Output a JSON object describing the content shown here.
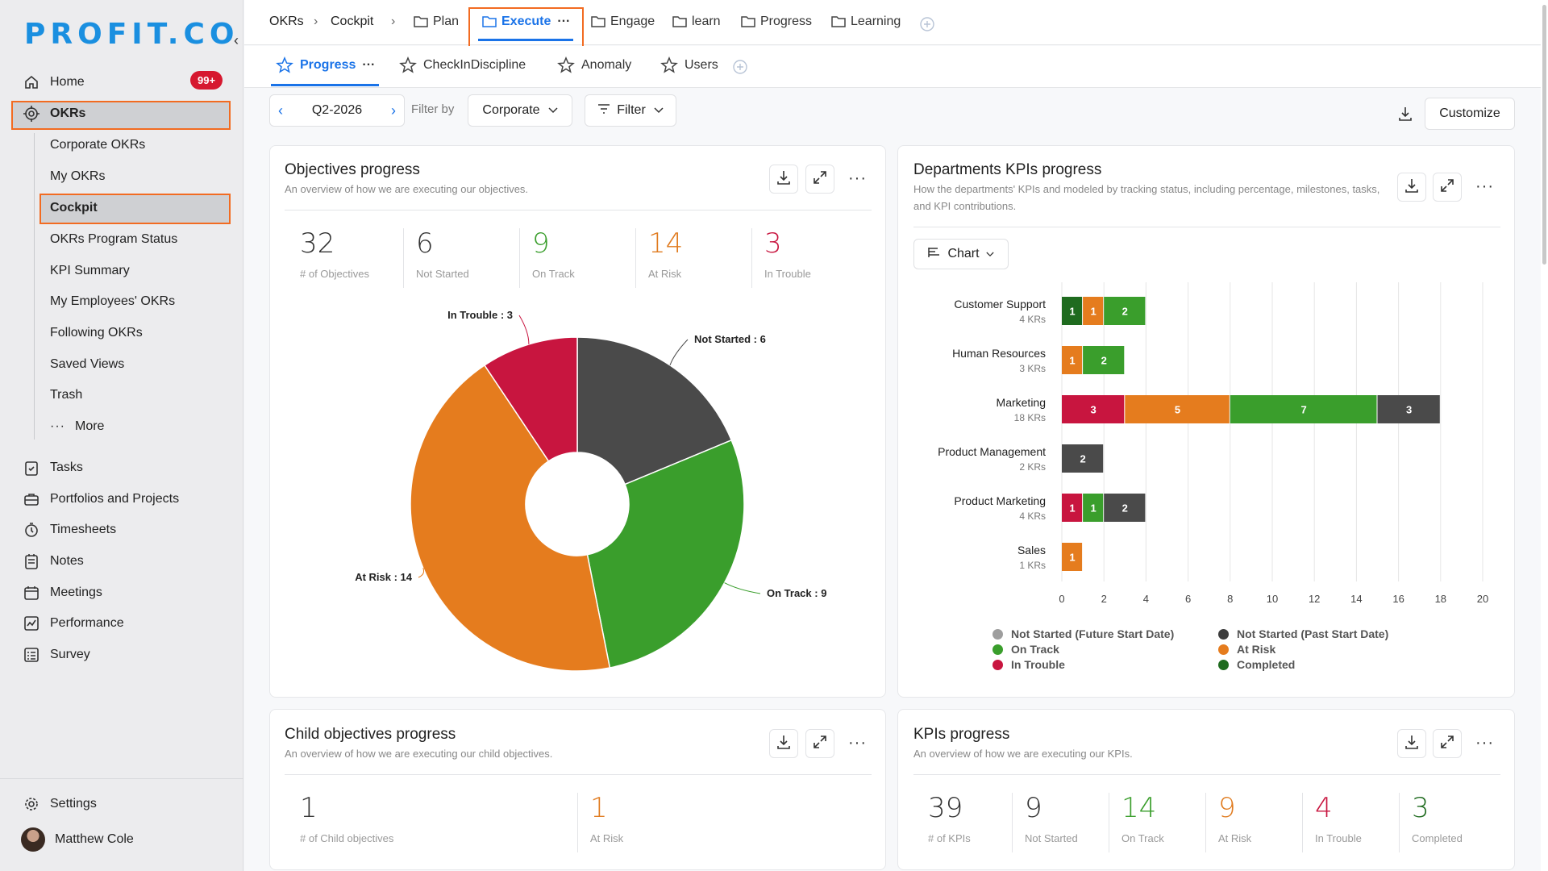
{
  "brand": {
    "logo": "PROFIT.CO"
  },
  "sidebar": {
    "home": "Home",
    "home_badge": "99+",
    "okrs": "OKRs",
    "okr_items": [
      "Corporate OKRs",
      "My OKRs",
      "Cockpit",
      "OKRs Program Status",
      "KPI Summary",
      "My Employees' OKRs",
      "Following OKRs",
      "Saved Views",
      "Trash"
    ],
    "more": "More",
    "modules": [
      "Tasks",
      "Portfolios and Projects",
      "Timesheets",
      "Notes",
      "Meetings",
      "Performance",
      "Survey"
    ],
    "settings": "Settings",
    "user_name": "Matthew Cole"
  },
  "topnav": {
    "crumbs": [
      "OKRs",
      "Cockpit"
    ],
    "tabs": [
      "Plan",
      "Execute",
      "Engage",
      "learn",
      "Progress",
      "Learning"
    ],
    "active_tab": "Execute"
  },
  "subnav": {
    "tabs": [
      "Progress",
      "CheckInDiscipline",
      "Anomaly",
      "Users"
    ],
    "active": "Progress"
  },
  "filters": {
    "period": "Q2-2026",
    "filter_by_label": "Filter by",
    "filter_by_value": "Corporate",
    "filter_button": "Filter",
    "customize": "Customize"
  },
  "objectives_card": {
    "title": "Objectives progress",
    "subtitle": "An overview of how we are executing our objectives.",
    "stats": [
      {
        "value": "32",
        "label": "# of Objectives",
        "color": "#333333"
      },
      {
        "value": "6",
        "label": "Not Started",
        "color": "#333333"
      },
      {
        "value": "9",
        "label": "On Track",
        "color": "#3a9e2c"
      },
      {
        "value": "14",
        "label": "At Risk",
        "color": "#e07b1f"
      },
      {
        "value": "3",
        "label": "In Trouble",
        "color": "#c8153f"
      }
    ]
  },
  "chart_data": [
    {
      "type": "pie",
      "style": "donut",
      "slices": [
        {
          "label": "Not Started",
          "value": 6,
          "color": "#4a4a4a",
          "text": "Not Started : 6"
        },
        {
          "label": "On Track",
          "value": 9,
          "color": "#3a9e2c",
          "text": "On Track : 9"
        },
        {
          "label": "At Risk",
          "value": 14,
          "color": "#e57c1e",
          "text": "At Risk : 14"
        },
        {
          "label": "In Trouble",
          "value": 3,
          "color": "#c8153f",
          "text": "In Trouble : 3"
        }
      ]
    },
    {
      "type": "bar",
      "orientation": "horizontal",
      "stacked": true,
      "categories": [
        "Customer Support",
        "Human Resources",
        "Marketing",
        "Product Management",
        "Product Marketing",
        "Sales"
      ],
      "category_sublabels": [
        "4 KRs",
        "3 KRs",
        "18 KRs",
        "2 KRs",
        "4 KRs",
        "1 KRs"
      ],
      "series": [
        {
          "name": "In Trouble",
          "color": "#c8153f",
          "values": [
            0,
            0,
            3,
            0,
            1,
            0
          ]
        },
        {
          "name": "Completed",
          "color": "#1f6b1f",
          "values": [
            1,
            0,
            0,
            0,
            0,
            0
          ]
        },
        {
          "name": "At Risk",
          "color": "#e57c1e",
          "values": [
            1,
            1,
            5,
            0,
            0,
            1
          ]
        },
        {
          "name": "On Track",
          "color": "#3a9e2c",
          "values": [
            2,
            2,
            7,
            0,
            1,
            0
          ]
        },
        {
          "name": "Not Started (Past Start Date)",
          "color": "#4a4a4a",
          "values": [
            0,
            0,
            3,
            2,
            2,
            0
          ]
        }
      ],
      "xlim": [
        0,
        20
      ],
      "xticks": [
        0,
        2,
        4,
        6,
        8,
        10,
        12,
        14,
        16,
        18,
        20
      ],
      "grid": true,
      "legend": [
        {
          "name": "Not Started (Future Start Date)",
          "color": "#9e9e9e"
        },
        {
          "name": "Not Started (Past Start Date)",
          "color": "#3d3d3d"
        },
        {
          "name": "On Track",
          "color": "#3a9e2c"
        },
        {
          "name": "At Risk",
          "color": "#e57c1e"
        },
        {
          "name": "In Trouble",
          "color": "#c8153f"
        },
        {
          "name": "Completed",
          "color": "#1f6b1f"
        }
      ],
      "legend_position": "bottom"
    }
  ],
  "departments_card": {
    "title": "Departments KPIs progress",
    "subtitle": "How the departments' KPIs and modeled by tracking status, including percentage, milestones, tasks, and KPI contributions.",
    "view_button": "Chart"
  },
  "child_card": {
    "title": "Child objectives progress",
    "subtitle": "An overview of how we are executing our child objectives.",
    "stats": [
      {
        "value": "1",
        "label": "# of Child objectives",
        "color": "#333333"
      },
      {
        "value": "1",
        "label": "At Risk",
        "color": "#e07b1f"
      }
    ]
  },
  "kpis_card": {
    "title": "KPIs progress",
    "subtitle": "An overview of how we are executing our KPIs.",
    "stats": [
      {
        "value": "39",
        "label": "# of KPIs",
        "color": "#333333"
      },
      {
        "value": "9",
        "label": "Not Started",
        "color": "#333333"
      },
      {
        "value": "14",
        "label": "On Track",
        "color": "#3a9e2c"
      },
      {
        "value": "9",
        "label": "At Risk",
        "color": "#e07b1f"
      },
      {
        "value": "4",
        "label": "In Trouble",
        "color": "#c8153f"
      },
      {
        "value": "3",
        "label": "Completed",
        "color": "#1f6b1f"
      }
    ]
  }
}
